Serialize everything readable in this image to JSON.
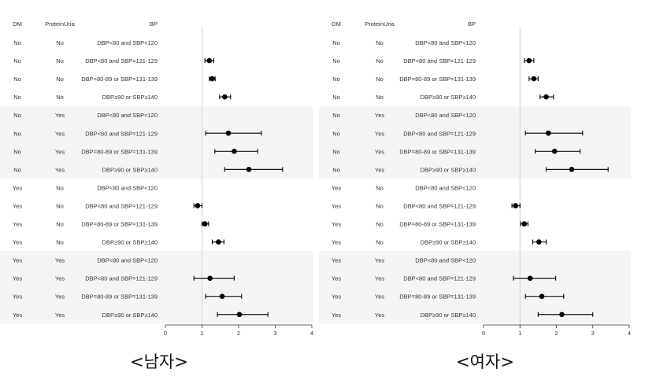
{
  "chart_data": [
    {
      "type": "forest",
      "title": "<남자>",
      "columns": [
        "DM",
        "ProteinUria",
        "BP"
      ],
      "xlim": [
        0,
        4
      ],
      "ticks": [
        0,
        1,
        2,
        3,
        4
      ],
      "reference": 1,
      "rows": [
        {
          "dm": "No",
          "pu": "No",
          "bp": "DBP<80 and SBP<120",
          "est": null,
          "lo": null,
          "hi": null
        },
        {
          "dm": "No",
          "pu": "No",
          "bp": "DBP<80 and SBP=121-129",
          "est": 1.2,
          "lo": 1.08,
          "hi": 1.32
        },
        {
          "dm": "No",
          "pu": "No",
          "bp": "DBP=80-89 or SBP=131-139",
          "est": 1.28,
          "lo": 1.2,
          "hi": 1.36
        },
        {
          "dm": "No",
          "pu": "No",
          "bp": "DBP≥90 or SBP≥140",
          "est": 1.62,
          "lo": 1.48,
          "hi": 1.78
        },
        {
          "dm": "No",
          "pu": "Yes",
          "bp": "DBP<80 and SBP<120",
          "est": null,
          "lo": null,
          "hi": null
        },
        {
          "dm": "No",
          "pu": "Yes",
          "bp": "DBP<80 and SBP=121-129",
          "est": 1.72,
          "lo": 1.1,
          "hi": 2.62
        },
        {
          "dm": "No",
          "pu": "Yes",
          "bp": "DBP=80-89 or SBP=131-139",
          "est": 1.88,
          "lo": 1.35,
          "hi": 2.52
        },
        {
          "dm": "No",
          "pu": "Yes",
          "bp": "DBP≥90 or SBP≥140",
          "est": 2.28,
          "lo": 1.62,
          "hi": 3.2
        },
        {
          "dm": "Yes",
          "pu": "No",
          "bp": "DBP<80 and SBP<120",
          "est": null,
          "lo": null,
          "hi": null
        },
        {
          "dm": "Yes",
          "pu": "No",
          "bp": "DBP<80 and SBP=121-129",
          "est": 0.88,
          "lo": 0.78,
          "hi": 1.0
        },
        {
          "dm": "Yes",
          "pu": "No",
          "bp": "DBP=80-89 or SBP=131-139",
          "est": 1.08,
          "lo": 1.0,
          "hi": 1.18
        },
        {
          "dm": "Yes",
          "pu": "No",
          "bp": "DBP≥90 or SBP≥140",
          "est": 1.45,
          "lo": 1.28,
          "hi": 1.6
        },
        {
          "dm": "Yes",
          "pu": "Yes",
          "bp": "DBP<80 and SBP<120",
          "est": null,
          "lo": null,
          "hi": null
        },
        {
          "dm": "Yes",
          "pu": "Yes",
          "bp": "DBP<80 and SBP=121-129",
          "est": 1.22,
          "lo": 0.78,
          "hi": 1.88
        },
        {
          "dm": "Yes",
          "pu": "Yes",
          "bp": "DBP=80-89 or SBP=131-139",
          "est": 1.55,
          "lo": 1.1,
          "hi": 2.08
        },
        {
          "dm": "Yes",
          "pu": "Yes",
          "bp": "DBP≥90 or SBP≥140",
          "est": 2.02,
          "lo": 1.42,
          "hi": 2.8
        }
      ]
    },
    {
      "type": "forest",
      "title": "<여자>",
      "columns": [
        "DM",
        "ProteinUria",
        "BP"
      ],
      "xlim": [
        0,
        4
      ],
      "ticks": [
        0,
        1,
        2,
        3,
        4
      ],
      "reference": 1,
      "rows": [
        {
          "dm": "No",
          "pu": "No",
          "bp": "DBP<80 and SBP<120",
          "est": null,
          "lo": null,
          "hi": null
        },
        {
          "dm": "No",
          "pu": "No",
          "bp": "DBP<80 and SBP=121-129",
          "est": 1.25,
          "lo": 1.12,
          "hi": 1.38
        },
        {
          "dm": "No",
          "pu": "No",
          "bp": "DBP=80-89 or SBP=131-139",
          "est": 1.38,
          "lo": 1.25,
          "hi": 1.5
        },
        {
          "dm": "No",
          "pu": "No",
          "bp": "DBP≥90 or SBP≥140",
          "est": 1.72,
          "lo": 1.55,
          "hi": 1.92
        },
        {
          "dm": "No",
          "pu": "Yes",
          "bp": "DBP<80 and SBP<120",
          "est": null,
          "lo": null,
          "hi": null
        },
        {
          "dm": "No",
          "pu": "Yes",
          "bp": "DBP<80 and SBP=121-129",
          "est": 1.78,
          "lo": 1.15,
          "hi": 2.72
        },
        {
          "dm": "No",
          "pu": "Yes",
          "bp": "DBP=80-89 or SBP=131-139",
          "est": 1.95,
          "lo": 1.42,
          "hi": 2.65
        },
        {
          "dm": "No",
          "pu": "Yes",
          "bp": "DBP≥90 or SBP≥140",
          "est": 2.42,
          "lo": 1.72,
          "hi": 3.42
        },
        {
          "dm": "Yes",
          "pu": "No",
          "bp": "DBP<80 and SBP<120",
          "est": null,
          "lo": null,
          "hi": null
        },
        {
          "dm": "Yes",
          "pu": "No",
          "bp": "DBP<80 and SBP=121-129",
          "est": 0.88,
          "lo": 0.78,
          "hi": 1.0
        },
        {
          "dm": "Yes",
          "pu": "No",
          "bp": "DBP=80-89 or SBP=131-139",
          "est": 1.12,
          "lo": 1.02,
          "hi": 1.22
        },
        {
          "dm": "Yes",
          "pu": "No",
          "bp": "DBP≥90 or SBP≥140",
          "est": 1.52,
          "lo": 1.35,
          "hi": 1.72
        },
        {
          "dm": "Yes",
          "pu": "Yes",
          "bp": "DBP<80 and SBP<120",
          "est": null,
          "lo": null,
          "hi": null
        },
        {
          "dm": "Yes",
          "pu": "Yes",
          "bp": "DBP<80 and SBP=121-129",
          "est": 1.28,
          "lo": 0.82,
          "hi": 1.98
        },
        {
          "dm": "Yes",
          "pu": "Yes",
          "bp": "DBP=80-89 or SBP=131-139",
          "est": 1.6,
          "lo": 1.15,
          "hi": 2.2
        },
        {
          "dm": "Yes",
          "pu": "Yes",
          "bp": "DBP≥90 or SBP≥140",
          "est": 2.15,
          "lo": 1.5,
          "hi": 3.0
        }
      ]
    }
  ]
}
